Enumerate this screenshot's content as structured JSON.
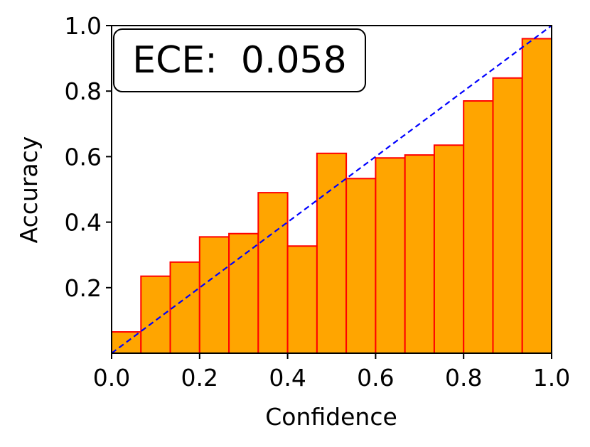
{
  "chart_data": {
    "type": "bar",
    "xlabel": "Confidence",
    "ylabel": "Accuracy",
    "xlim": [
      0,
      1
    ],
    "ylim": [
      0,
      1
    ],
    "x_ticks": [
      "0.0",
      "0.2",
      "0.4",
      "0.6",
      "0.8",
      "1.0"
    ],
    "y_ticks": [
      "0.2",
      "0.4",
      "0.6",
      "0.8",
      "1.0"
    ],
    "bin_edges": [
      0.0,
      0.0667,
      0.1333,
      0.2,
      0.2667,
      0.3333,
      0.4,
      0.4667,
      0.5333,
      0.6,
      0.6667,
      0.7333,
      0.8,
      0.8667,
      0.9333,
      1.0
    ],
    "values": [
      0.065,
      0.235,
      0.278,
      0.355,
      0.365,
      0.49,
      0.327,
      0.61,
      0.533,
      0.596,
      0.605,
      0.635,
      0.77,
      0.84,
      0.96
    ],
    "reference_line": {
      "from": [
        0,
        0
      ],
      "to": [
        1,
        1
      ],
      "color": "#0000ff",
      "style": "dashed"
    },
    "annotation": "ECE:  0.058",
    "bar_fill": "#ffa500",
    "bar_edge": "#ff0000",
    "grid": false
  }
}
